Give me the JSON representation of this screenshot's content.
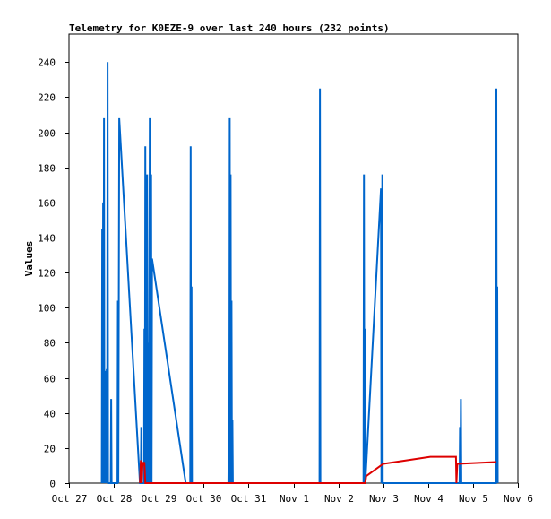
{
  "chart_data": {
    "type": "line",
    "title": "Telemetry for K0EZE-9 over last 240 hours (232 points)",
    "xlabel": "",
    "ylabel": "Values",
    "ylim": [
      0,
      256
    ],
    "yticks": [
      0,
      20,
      40,
      60,
      80,
      100,
      120,
      140,
      160,
      180,
      200,
      220,
      240
    ],
    "x_tick_labels": [
      "Oct 27",
      "Oct 28",
      "Oct 29",
      "Oct 30",
      "Oct 31",
      "Nov 1",
      "Nov 2",
      "Nov 3",
      "Nov 4",
      "Nov 5",
      "Nov 6"
    ],
    "x_unit": "days since Oct 27 00:00",
    "xlim": [
      0,
      10
    ],
    "grid": false,
    "legend": "none",
    "series": [
      {
        "color": "#0066cc",
        "points": [
          [
            0.73,
            0
          ],
          [
            0.74,
            145
          ],
          [
            0.75,
            0
          ],
          [
            0.76,
            160
          ],
          [
            0.77,
            0
          ],
          [
            0.78,
            208
          ],
          [
            0.79,
            0
          ],
          [
            0.81,
            64
          ],
          [
            0.82,
            0
          ],
          [
            0.84,
            65
          ],
          [
            0.85,
            0
          ],
          [
            0.86,
            240
          ],
          [
            0.87,
            0
          ],
          [
            0.93,
            0
          ],
          [
            0.94,
            48
          ],
          [
            0.95,
            0
          ],
          [
            1.08,
            0
          ],
          [
            1.09,
            104
          ],
          [
            1.1,
            0
          ],
          [
            1.12,
            208
          ],
          [
            1.58,
            0
          ],
          [
            1.6,
            0
          ],
          [
            1.61,
            32
          ],
          [
            1.62,
            0
          ],
          [
            1.67,
            0
          ],
          [
            1.68,
            88
          ],
          [
            1.69,
            0
          ],
          [
            1.7,
            192
          ],
          [
            1.71,
            0
          ],
          [
            1.72,
            96
          ],
          [
            1.73,
            0
          ],
          [
            1.74,
            176
          ],
          [
            1.75,
            0
          ],
          [
            1.77,
            80
          ],
          [
            1.78,
            0
          ],
          [
            1.8,
            208
          ],
          [
            1.81,
            0
          ],
          [
            1.83,
            176
          ],
          [
            1.84,
            0
          ],
          [
            1.85,
            128
          ],
          [
            2.6,
            0
          ],
          [
            2.7,
            0
          ],
          [
            2.71,
            192
          ],
          [
            2.72,
            0
          ],
          [
            2.73,
            112
          ],
          [
            2.74,
            0
          ],
          [
            3.55,
            0
          ],
          [
            3.56,
            32
          ],
          [
            3.57,
            0
          ],
          [
            3.58,
            208
          ],
          [
            3.59,
            0
          ],
          [
            3.6,
            176
          ],
          [
            3.61,
            0
          ],
          [
            3.62,
            104
          ],
          [
            3.63,
            0
          ],
          [
            3.64,
            36
          ],
          [
            3.65,
            0
          ],
          [
            5.58,
            0
          ],
          [
            5.59,
            225
          ],
          [
            5.6,
            0
          ],
          [
            6.56,
            0
          ],
          [
            6.57,
            176
          ],
          [
            6.58,
            0
          ],
          [
            6.59,
            88
          ],
          [
            6.6,
            0
          ],
          [
            6.95,
            168
          ],
          [
            6.96,
            0
          ],
          [
            6.98,
            176
          ],
          [
            6.99,
            0
          ],
          [
            8.7,
            0
          ],
          [
            8.71,
            32
          ],
          [
            8.72,
            0
          ],
          [
            8.73,
            48
          ],
          [
            8.74,
            0
          ],
          [
            9.51,
            0
          ],
          [
            9.52,
            225
          ],
          [
            9.53,
            0
          ],
          [
            9.54,
            112
          ],
          [
            9.55,
            0
          ]
        ]
      },
      {
        "color": "#dd0000",
        "points": [
          [
            1.58,
            0
          ],
          [
            1.6,
            13
          ],
          [
            1.62,
            0
          ],
          [
            1.64,
            12
          ],
          [
            1.66,
            10
          ],
          [
            1.68,
            12
          ],
          [
            1.7,
            0
          ],
          [
            6.6,
            0
          ],
          [
            6.62,
            4
          ],
          [
            7.0,
            11
          ],
          [
            8.05,
            15
          ],
          [
            8.62,
            15
          ],
          [
            8.63,
            0
          ],
          [
            8.65,
            11
          ],
          [
            9.5,
            12
          ],
          [
            9.52,
            12
          ]
        ]
      }
    ]
  }
}
